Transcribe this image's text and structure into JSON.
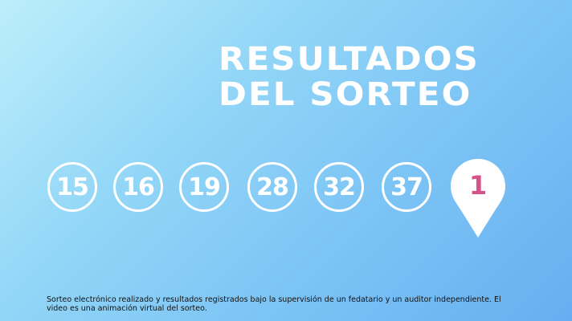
{
  "title": {
    "line1": "RESULTADOS",
    "line2": "DEL SORTEO"
  },
  "numbers": [
    "15",
    "16",
    "19",
    "28",
    "32",
    "37"
  ],
  "special_number": "1",
  "colors": {
    "special": "#d6528a",
    "ball": "#ffffff"
  },
  "disclaimer": "Sorteo electrónico realizado y resultados registrados bajo la supervisión de un fedatario y un auditor independiente. El video es una animación virtual del sorteo."
}
